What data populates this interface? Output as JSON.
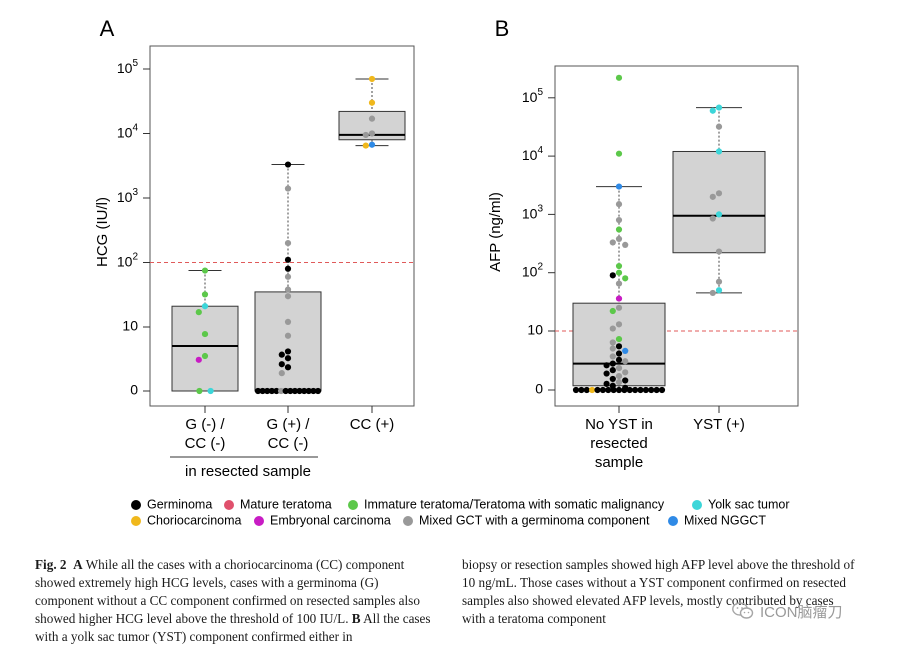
{
  "chart_data": [
    {
      "type": "box",
      "panel_label": "A",
      "ylabel": "HCG (IU/l)",
      "y_ticks": [
        "0",
        "10",
        "10²",
        "10³",
        "10⁴",
        "10⁵"
      ],
      "y_tick_values": [
        0,
        10,
        100,
        1000,
        10000,
        100000
      ],
      "categories": [
        "G (-) / CC (-)",
        "G (+) / CC (-)",
        "CC (+)"
      ],
      "category_lines": [
        [
          "G (-) /",
          "CC (-)"
        ],
        [
          "G (+) /",
          "CC (-)"
        ],
        [
          "CC (+)"
        ]
      ],
      "group_label": "in resected sample",
      "threshold": 100,
      "boxes": [
        {
          "whisker_low": 0,
          "q1": 0,
          "median": 4.5,
          "q3": 21,
          "whisker_high": 75
        },
        {
          "whisker_low": 0,
          "q1": 0,
          "median": 0,
          "q3": 35,
          "whisker_high": 3300
        },
        {
          "whisker_low": 6500,
          "q1": 8000,
          "median": 9500,
          "q3": 22000,
          "whisker_high": 70000
        }
      ],
      "points": [
        [
          {
            "y": 75,
            "c": "immature"
          },
          {
            "y": 32,
            "c": "immature"
          },
          {
            "y": 21,
            "c": "yolk"
          },
          {
            "y": 17,
            "c": "immature"
          },
          {
            "y": 7.5,
            "c": "immature"
          },
          {
            "y": 2.8,
            "c": "immature"
          },
          {
            "y": 2.3,
            "c": "embryonal"
          },
          {
            "y": 0,
            "c": "immature"
          },
          {
            "y": 0,
            "c": "yolk"
          }
        ],
        [
          {
            "y": 3300,
            "c": "germinoma"
          },
          {
            "y": 1400,
            "c": "mixed_gct"
          },
          {
            "y": 200,
            "c": "mixed_gct"
          },
          {
            "y": 110,
            "c": "germinoma"
          },
          {
            "y": 80,
            "c": "germinoma"
          },
          {
            "y": 60,
            "c": "mixed_gct"
          },
          {
            "y": 38,
            "c": "mixed_gct"
          },
          {
            "y": 30,
            "c": "mixed_gct"
          },
          {
            "y": 12,
            "c": "mixed_gct"
          },
          {
            "y": 7,
            "c": "mixed_gct"
          },
          {
            "y": 3.5,
            "c": "germinoma"
          },
          {
            "y": 3,
            "c": "germinoma"
          },
          {
            "y": 2.5,
            "c": "germinoma"
          },
          {
            "y": 1.8,
            "c": "germinoma"
          },
          {
            "y": 1.5,
            "c": "germinoma"
          },
          {
            "y": 1,
            "c": "mixed_gct"
          },
          {
            "y": 0,
            "c": "germinoma"
          },
          {
            "y": 0,
            "c": "germinoma"
          },
          {
            "y": 0,
            "c": "germinoma"
          },
          {
            "y": 0,
            "c": "germinoma"
          },
          {
            "y": 0,
            "c": "germinoma"
          },
          {
            "y": 0,
            "c": "mixed_gct"
          },
          {
            "y": 0,
            "c": "germinoma"
          },
          {
            "y": 0,
            "c": "germinoma"
          },
          {
            "y": 0,
            "c": "germinoma"
          },
          {
            "y": 0,
            "c": "germinoma"
          },
          {
            "y": 0,
            "c": "germinoma"
          },
          {
            "y": 0,
            "c": "germinoma"
          },
          {
            "y": 0,
            "c": "germinoma"
          },
          {
            "y": 0,
            "c": "germinoma"
          }
        ],
        [
          {
            "y": 70000,
            "c": "chorio"
          },
          {
            "y": 30000,
            "c": "chorio"
          },
          {
            "y": 17000,
            "c": "mixed_gct"
          },
          {
            "y": 10000,
            "c": "mixed_gct"
          },
          {
            "y": 9500,
            "c": "mixed_gct"
          },
          {
            "y": 6700,
            "c": "mixed_nggct"
          },
          {
            "y": 6500,
            "c": "chorio"
          }
        ]
      ]
    },
    {
      "type": "box",
      "panel_label": "B",
      "ylabel": "AFP (ng/ml)",
      "y_ticks": [
        "0",
        "10",
        "10²",
        "10³",
        "10⁴",
        "10⁵"
      ],
      "y_tick_values": [
        0,
        10,
        100,
        1000,
        10000,
        100000
      ],
      "categories": [
        "No YST in resected sample",
        "YST (+)"
      ],
      "category_lines": [
        [
          "No YST in",
          "resected",
          "sample"
        ],
        [
          "YST (+)"
        ]
      ],
      "threshold": 10,
      "boxes": [
        {
          "whisker_low": 0,
          "q1": 0.2,
          "median": 2,
          "q3": 30,
          "whisker_high": 3000
        },
        {
          "whisker_low": 45,
          "q1": 220,
          "median": 950,
          "q3": 12000,
          "whisker_high": 68000
        }
      ],
      "points": [
        [
          {
            "y": 220000,
            "c": "immature"
          },
          {
            "y": 11000,
            "c": "immature"
          },
          {
            "y": 3000,
            "c": "mixed_nggct"
          },
          {
            "y": 1500,
            "c": "mixed_gct"
          },
          {
            "y": 800,
            "c": "mixed_gct"
          },
          {
            "y": 550,
            "c": "immature"
          },
          {
            "y": 380,
            "c": "mixed_gct"
          },
          {
            "y": 330,
            "c": "mixed_gct"
          },
          {
            "y": 300,
            "c": "mixed_gct"
          },
          {
            "y": 130,
            "c": "immature"
          },
          {
            "y": 100,
            "c": "immature"
          },
          {
            "y": 90,
            "c": "germinoma"
          },
          {
            "y": 80,
            "c": "immature"
          },
          {
            "y": 65,
            "c": "mixed_gct"
          },
          {
            "y": 36,
            "c": "embryonal"
          },
          {
            "y": 25,
            "c": "mixed_gct"
          },
          {
            "y": 22,
            "c": "immature"
          },
          {
            "y": 13,
            "c": "mixed_gct"
          },
          {
            "y": 11,
            "c": "mixed_gct"
          },
          {
            "y": 7,
            "c": "immature"
          },
          {
            "y": 6,
            "c": "mixed_gct"
          },
          {
            "y": 5,
            "c": "germinoma"
          },
          {
            "y": 4.5,
            "c": "mixed_gct"
          },
          {
            "y": 4,
            "c": "mixed_nggct"
          },
          {
            "y": 3.5,
            "c": "germinoma"
          },
          {
            "y": 3,
            "c": "mixed_gct"
          },
          {
            "y": 2.5,
            "c": "germinoma"
          },
          {
            "y": 2.3,
            "c": "mixed_gct"
          },
          {
            "y": 2,
            "c": "germinoma"
          },
          {
            "y": 1.8,
            "c": "germinoma"
          },
          {
            "y": 1.5,
            "c": "mixed_gct"
          },
          {
            "y": 1.3,
            "c": "germinoma"
          },
          {
            "y": 1.1,
            "c": "mixed_gct"
          },
          {
            "y": 1,
            "c": "germinoma"
          },
          {
            "y": 0.8,
            "c": "mixed_gct"
          },
          {
            "y": 0.6,
            "c": "germinoma"
          },
          {
            "y": 0.5,
            "c": "germinoma"
          },
          {
            "y": 0.4,
            "c": "mixed_gct"
          },
          {
            "y": 0.3,
            "c": "germinoma"
          },
          {
            "y": 0.2,
            "c": "germinoma"
          },
          {
            "y": 0.1,
            "c": "germinoma"
          },
          {
            "y": 0,
            "c": "germinoma"
          },
          {
            "y": 0,
            "c": "germinoma"
          },
          {
            "y": 0,
            "c": "germinoma"
          },
          {
            "y": 0,
            "c": "chorio"
          },
          {
            "y": 0,
            "c": "germinoma"
          },
          {
            "y": 0,
            "c": "germinoma"
          },
          {
            "y": 0,
            "c": "germinoma"
          },
          {
            "y": 0,
            "c": "germinoma"
          },
          {
            "y": 0,
            "c": "germinoma"
          },
          {
            "y": 0,
            "c": "germinoma"
          },
          {
            "y": 0,
            "c": "germinoma"
          },
          {
            "y": 0,
            "c": "germinoma"
          },
          {
            "y": 0,
            "c": "germinoma"
          },
          {
            "y": 0,
            "c": "germinoma"
          },
          {
            "y": 0,
            "c": "germinoma"
          },
          {
            "y": 0,
            "c": "germinoma"
          },
          {
            "y": 0,
            "c": "germinoma"
          }
        ],
        [
          {
            "y": 68000,
            "c": "yolk"
          },
          {
            "y": 60000,
            "c": "yolk"
          },
          {
            "y": 32000,
            "c": "mixed_gct"
          },
          {
            "y": 12000,
            "c": "yolk"
          },
          {
            "y": 2300,
            "c": "mixed_gct"
          },
          {
            "y": 2000,
            "c": "mixed_gct"
          },
          {
            "y": 1000,
            "c": "yolk"
          },
          {
            "y": 850,
            "c": "mixed_gct"
          },
          {
            "y": 230,
            "c": "mixed_gct"
          },
          {
            "y": 70,
            "c": "mixed_gct"
          },
          {
            "y": 50,
            "c": "yolk"
          },
          {
            "y": 45,
            "c": "mixed_gct"
          }
        ]
      ]
    }
  ],
  "legend": [
    {
      "key": "germinoma",
      "label": "Germinoma",
      "color": "#000000"
    },
    {
      "key": "mature",
      "label": "Mature teratoma",
      "color": "#e0506c"
    },
    {
      "key": "immature",
      "label": "Immature teratoma/Teratoma with somatic malignancy",
      "color": "#5cc84a"
    },
    {
      "key": "yolk",
      "label": "Yolk sac tumor",
      "color": "#3cd6d9"
    },
    {
      "key": "chorio",
      "label": "Choriocarcinoma",
      "color": "#f0b81c"
    },
    {
      "key": "embryonal",
      "label": "Embryonal carcinoma",
      "color": "#c81cc4"
    },
    {
      "key": "mixed_gct",
      "label": "Mixed GCT with a germinoma component",
      "color": "#999999"
    },
    {
      "key": "mixed_nggct",
      "label": "Mixed NGGCT",
      "color": "#2f8ae6"
    }
  ],
  "caption": {
    "label": "Fig. 2",
    "part_a_label": "A",
    "part_a_text": " While all the cases with a choriocarcinoma (CC) component showed extremely high HCG levels, cases with a germinoma (G) component without a CC component confirmed on resected samples also showed higher HCG level above the threshold of 100 IU/L.",
    "part_b_label": "B",
    "part_b_text_left": " All the cases with a yolk sac tumor (YST) component confirmed either in",
    "right_text": "biopsy or resection samples showed high AFP level above the threshold of 10 ng/mL. Those cases without a YST component confirmed on resected samples also showed elevated AFP levels, mostly contributed by cases with a teratoma component"
  },
  "watermark": {
    "text": "ICON脑瘤刀",
    "icon": "wechat-icon"
  }
}
